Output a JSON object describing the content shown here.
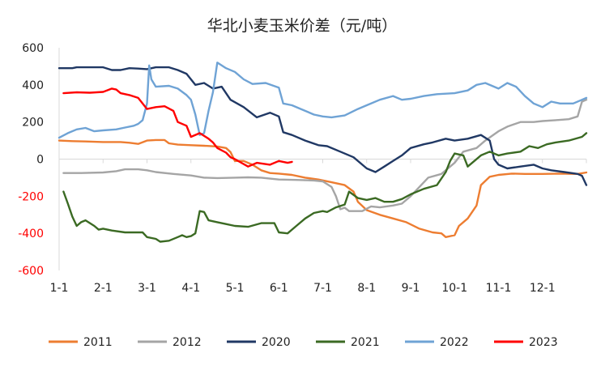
{
  "chart_data": {
    "type": "line",
    "title": "华北小麦玉米价差（元/吨）",
    "xlabel": "",
    "ylabel": "",
    "ylim": [
      -600,
      600
    ],
    "y_ticks": [
      600,
      400,
      200,
      0,
      -200,
      -400,
      -600
    ],
    "y_tick_labels": [
      "600",
      "400",
      "200",
      "0",
      "-200",
      "-400",
      "-600"
    ],
    "x_ticks": [
      1,
      2,
      3,
      4,
      5,
      6,
      7,
      8,
      9,
      10,
      11,
      12
    ],
    "x_tick_labels": [
      "1-1",
      "2-1",
      "3-1",
      "4-1",
      "5-1",
      "6-1",
      "7-1",
      "8-1",
      "9-1",
      "10-1",
      "11-1",
      "12-1"
    ],
    "xlim": [
      1,
      13
    ],
    "grid": false,
    "legend_position": "bottom",
    "series": [
      {
        "name": "2011",
        "color": "#ed7d31",
        "points": [
          [
            1.0,
            100
          ],
          [
            1.3,
            97
          ],
          [
            1.6,
            95
          ],
          [
            2.0,
            92
          ],
          [
            2.4,
            92
          ],
          [
            2.6,
            88
          ],
          [
            2.8,
            82
          ],
          [
            3.0,
            100
          ],
          [
            3.2,
            103
          ],
          [
            3.4,
            103
          ],
          [
            3.5,
            85
          ],
          [
            3.7,
            78
          ],
          [
            4.0,
            75
          ],
          [
            4.3,
            72
          ],
          [
            4.6,
            68
          ],
          [
            4.8,
            60
          ],
          [
            4.9,
            38
          ],
          [
            5.0,
            -10
          ],
          [
            5.2,
            -10
          ],
          [
            5.4,
            -30
          ],
          [
            5.6,
            -60
          ],
          [
            5.8,
            -75
          ],
          [
            6.0,
            -78
          ],
          [
            6.3,
            -85
          ],
          [
            6.6,
            -100
          ],
          [
            6.9,
            -110
          ],
          [
            7.2,
            -125
          ],
          [
            7.5,
            -140
          ],
          [
            7.7,
            -175
          ],
          [
            7.8,
            -230
          ],
          [
            8.0,
            -275
          ],
          [
            8.3,
            -300
          ],
          [
            8.6,
            -320
          ],
          [
            8.9,
            -340
          ],
          [
            9.2,
            -375
          ],
          [
            9.5,
            -395
          ],
          [
            9.7,
            -400
          ],
          [
            9.8,
            -420
          ],
          [
            10.0,
            -410
          ],
          [
            10.1,
            -360
          ],
          [
            10.3,
            -320
          ],
          [
            10.5,
            -250
          ],
          [
            10.6,
            -140
          ],
          [
            10.8,
            -95
          ],
          [
            11.0,
            -85
          ],
          [
            11.3,
            -78
          ],
          [
            11.6,
            -80
          ],
          [
            12.0,
            -80
          ],
          [
            12.4,
            -78
          ],
          [
            12.8,
            -80
          ],
          [
            13.0,
            -72
          ]
        ]
      },
      {
        "name": "2012",
        "color": "#a5a5a5",
        "points": [
          [
            1.1,
            -75
          ],
          [
            1.5,
            -75
          ],
          [
            2.0,
            -72
          ],
          [
            2.3,
            -65
          ],
          [
            2.5,
            -55
          ],
          [
            2.8,
            -55
          ],
          [
            3.0,
            -60
          ],
          [
            3.2,
            -70
          ],
          [
            3.6,
            -80
          ],
          [
            4.0,
            -88
          ],
          [
            4.3,
            -100
          ],
          [
            4.6,
            -102
          ],
          [
            5.0,
            -100
          ],
          [
            5.3,
            -98
          ],
          [
            5.6,
            -100
          ],
          [
            6.0,
            -110
          ],
          [
            6.4,
            -112
          ],
          [
            6.8,
            -115
          ],
          [
            7.0,
            -120
          ],
          [
            7.2,
            -150
          ],
          [
            7.3,
            -200
          ],
          [
            7.4,
            -270
          ],
          [
            7.5,
            -262
          ],
          [
            7.6,
            -280
          ],
          [
            7.9,
            -280
          ],
          [
            8.1,
            -255
          ],
          [
            8.3,
            -260
          ],
          [
            8.6,
            -250
          ],
          [
            8.8,
            -240
          ],
          [
            9.0,
            -200
          ],
          [
            9.2,
            -150
          ],
          [
            9.4,
            -100
          ],
          [
            9.7,
            -80
          ],
          [
            10.0,
            -20
          ],
          [
            10.2,
            40
          ],
          [
            10.5,
            60
          ],
          [
            10.7,
            100
          ],
          [
            11.0,
            150
          ],
          [
            11.2,
            175
          ],
          [
            11.5,
            200
          ],
          [
            11.8,
            200
          ],
          [
            12.0,
            205
          ],
          [
            12.3,
            210
          ],
          [
            12.6,
            215
          ],
          [
            12.8,
            230
          ],
          [
            12.9,
            310
          ],
          [
            13.0,
            320
          ]
        ]
      },
      {
        "name": "2020",
        "color": "#203864",
        "points": [
          [
            1.0,
            490
          ],
          [
            1.3,
            490
          ],
          [
            1.4,
            495
          ],
          [
            1.6,
            495
          ],
          [
            2.0,
            495
          ],
          [
            2.2,
            480
          ],
          [
            2.4,
            480
          ],
          [
            2.6,
            490
          ],
          [
            2.8,
            488
          ],
          [
            3.0,
            485
          ],
          [
            3.2,
            495
          ],
          [
            3.5,
            495
          ],
          [
            3.7,
            480
          ],
          [
            3.9,
            460
          ],
          [
            4.1,
            400
          ],
          [
            4.3,
            410
          ],
          [
            4.5,
            380
          ],
          [
            4.7,
            390
          ],
          [
            4.9,
            320
          ],
          [
            5.2,
            280
          ],
          [
            5.5,
            225
          ],
          [
            5.8,
            250
          ],
          [
            6.0,
            230
          ],
          [
            6.1,
            145
          ],
          [
            6.3,
            130
          ],
          [
            6.6,
            100
          ],
          [
            6.9,
            75
          ],
          [
            7.1,
            70
          ],
          [
            7.4,
            40
          ],
          [
            7.7,
            10
          ],
          [
            8.0,
            -50
          ],
          [
            8.2,
            -70
          ],
          [
            8.4,
            -40
          ],
          [
            8.6,
            -10
          ],
          [
            8.8,
            20
          ],
          [
            9.0,
            60
          ],
          [
            9.3,
            80
          ],
          [
            9.5,
            90
          ],
          [
            9.8,
            110
          ],
          [
            10.0,
            100
          ],
          [
            10.3,
            110
          ],
          [
            10.6,
            130
          ],
          [
            10.8,
            100
          ],
          [
            10.9,
            0
          ],
          [
            11.0,
            -30
          ],
          [
            11.2,
            -50
          ],
          [
            11.5,
            -40
          ],
          [
            11.8,
            -30
          ],
          [
            12.0,
            -50
          ],
          [
            12.2,
            -60
          ],
          [
            12.5,
            -70
          ],
          [
            12.8,
            -80
          ],
          [
            12.9,
            -90
          ],
          [
            13.0,
            -140
          ]
        ]
      },
      {
        "name": "2021",
        "color": "#3b6a23",
        "points": [
          [
            1.1,
            -175
          ],
          [
            1.2,
            -240
          ],
          [
            1.3,
            -310
          ],
          [
            1.4,
            -360
          ],
          [
            1.5,
            -340
          ],
          [
            1.6,
            -330
          ],
          [
            1.8,
            -360
          ],
          [
            1.9,
            -380
          ],
          [
            2.0,
            -375
          ],
          [
            2.2,
            -385
          ],
          [
            2.5,
            -395
          ],
          [
            2.7,
            -395
          ],
          [
            2.9,
            -395
          ],
          [
            3.0,
            -420
          ],
          [
            3.2,
            -430
          ],
          [
            3.3,
            -445
          ],
          [
            3.5,
            -440
          ],
          [
            3.7,
            -420
          ],
          [
            3.8,
            -410
          ],
          [
            3.9,
            -420
          ],
          [
            4.0,
            -415
          ],
          [
            4.1,
            -400
          ],
          [
            4.2,
            -280
          ],
          [
            4.3,
            -285
          ],
          [
            4.4,
            -330
          ],
          [
            4.6,
            -340
          ],
          [
            4.8,
            -350
          ],
          [
            5.0,
            -360
          ],
          [
            5.3,
            -365
          ],
          [
            5.6,
            -345
          ],
          [
            5.9,
            -345
          ],
          [
            6.0,
            -395
          ],
          [
            6.2,
            -400
          ],
          [
            6.4,
            -360
          ],
          [
            6.6,
            -320
          ],
          [
            6.8,
            -290
          ],
          [
            7.0,
            -280
          ],
          [
            7.1,
            -285
          ],
          [
            7.3,
            -260
          ],
          [
            7.5,
            -245
          ],
          [
            7.6,
            -175
          ],
          [
            7.8,
            -210
          ],
          [
            8.0,
            -220
          ],
          [
            8.2,
            -210
          ],
          [
            8.4,
            -230
          ],
          [
            8.6,
            -230
          ],
          [
            8.8,
            -215
          ],
          [
            9.0,
            -190
          ],
          [
            9.3,
            -160
          ],
          [
            9.6,
            -140
          ],
          [
            9.8,
            -70
          ],
          [
            9.9,
            -10
          ],
          [
            10.0,
            30
          ],
          [
            10.2,
            20
          ],
          [
            10.3,
            -40
          ],
          [
            10.4,
            -20
          ],
          [
            10.6,
            20
          ],
          [
            10.8,
            40
          ],
          [
            11.0,
            20
          ],
          [
            11.2,
            30
          ],
          [
            11.5,
            40
          ],
          [
            11.7,
            70
          ],
          [
            11.9,
            60
          ],
          [
            12.1,
            80
          ],
          [
            12.3,
            90
          ],
          [
            12.6,
            100
          ],
          [
            12.9,
            120
          ],
          [
            13.0,
            140
          ]
        ]
      },
      {
        "name": "2022",
        "color": "#6fa3d5",
        "points": [
          [
            1.0,
            115
          ],
          [
            1.2,
            140
          ],
          [
            1.4,
            160
          ],
          [
            1.6,
            168
          ],
          [
            1.8,
            150
          ],
          [
            2.0,
            155
          ],
          [
            2.3,
            160
          ],
          [
            2.5,
            170
          ],
          [
            2.7,
            180
          ],
          [
            2.8,
            190
          ],
          [
            2.9,
            210
          ],
          [
            3.0,
            300
          ],
          [
            3.05,
            505
          ],
          [
            3.1,
            430
          ],
          [
            3.2,
            390
          ],
          [
            3.5,
            395
          ],
          [
            3.7,
            380
          ],
          [
            3.9,
            345
          ],
          [
            4.0,
            320
          ],
          [
            4.1,
            240
          ],
          [
            4.2,
            130
          ],
          [
            4.3,
            140
          ],
          [
            4.4,
            260
          ],
          [
            4.5,
            360
          ],
          [
            4.6,
            520
          ],
          [
            4.8,
            490
          ],
          [
            5.0,
            470
          ],
          [
            5.2,
            430
          ],
          [
            5.4,
            405
          ],
          [
            5.7,
            410
          ],
          [
            6.0,
            385
          ],
          [
            6.1,
            300
          ],
          [
            6.3,
            290
          ],
          [
            6.5,
            270
          ],
          [
            6.8,
            240
          ],
          [
            7.0,
            230
          ],
          [
            7.2,
            225
          ],
          [
            7.5,
            235
          ],
          [
            7.8,
            270
          ],
          [
            8.0,
            290
          ],
          [
            8.3,
            320
          ],
          [
            8.6,
            340
          ],
          [
            8.8,
            320
          ],
          [
            9.0,
            325
          ],
          [
            9.3,
            340
          ],
          [
            9.6,
            350
          ],
          [
            10.0,
            355
          ],
          [
            10.3,
            370
          ],
          [
            10.5,
            400
          ],
          [
            10.7,
            410
          ],
          [
            11.0,
            380
          ],
          [
            11.2,
            410
          ],
          [
            11.4,
            390
          ],
          [
            11.6,
            340
          ],
          [
            11.8,
            300
          ],
          [
            12.0,
            280
          ],
          [
            12.2,
            310
          ],
          [
            12.4,
            300
          ],
          [
            12.7,
            300
          ],
          [
            12.9,
            320
          ],
          [
            13.0,
            330
          ]
        ]
      },
      {
        "name": "2023",
        "color": "#ff0000",
        "points": [
          [
            1.1,
            355
          ],
          [
            1.4,
            360
          ],
          [
            1.7,
            358
          ],
          [
            2.0,
            362
          ],
          [
            2.2,
            380
          ],
          [
            2.3,
            375
          ],
          [
            2.4,
            355
          ],
          [
            2.6,
            345
          ],
          [
            2.8,
            330
          ],
          [
            3.0,
            270
          ],
          [
            3.2,
            280
          ],
          [
            3.4,
            285
          ],
          [
            3.6,
            260
          ],
          [
            3.7,
            200
          ],
          [
            3.9,
            180
          ],
          [
            4.0,
            120
          ],
          [
            4.2,
            140
          ],
          [
            4.4,
            110
          ],
          [
            4.5,
            90
          ],
          [
            4.6,
            60
          ],
          [
            4.8,
            35
          ],
          [
            4.9,
            10
          ],
          [
            5.0,
            0
          ],
          [
            5.3,
            -40
          ],
          [
            5.5,
            -20
          ],
          [
            5.8,
            -30
          ],
          [
            6.0,
            -10
          ],
          [
            6.2,
            -20
          ],
          [
            6.3,
            -15
          ]
        ]
      }
    ]
  }
}
